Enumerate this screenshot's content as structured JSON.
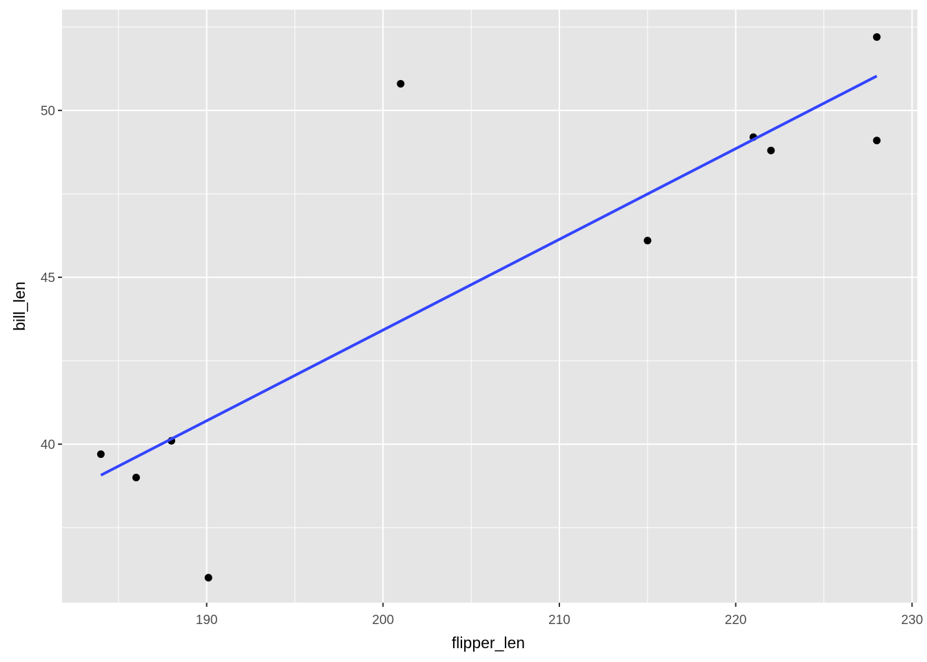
{
  "chart_data": {
    "type": "scatter",
    "x_label": "flipper_len",
    "y_label": "bill_len",
    "x": [
      184,
      186,
      188,
      190.1,
      201,
      215,
      221,
      222,
      228,
      228
    ],
    "values": [
      39.7,
      39.0,
      40.1,
      36.0,
      50.8,
      46.1,
      49.2,
      48.8,
      49.1,
      52.2
    ],
    "color": "#000000",
    "fit": {
      "x": [
        184,
        228
      ],
      "values": [
        39.07,
        51.03
      ],
      "color": "#3344ff"
    },
    "xlim": [
      181.8,
      230.3
    ],
    "ylim": [
      35.25,
      53.02
    ],
    "xticks": [
      190,
      200,
      210,
      220,
      230
    ],
    "yticks": [
      40,
      45,
      50
    ],
    "minor_xticks": [
      185,
      195,
      205,
      215,
      225
    ],
    "minor_yticks": [
      37.5,
      42.5,
      47.5,
      52.5
    ],
    "grid": true
  }
}
